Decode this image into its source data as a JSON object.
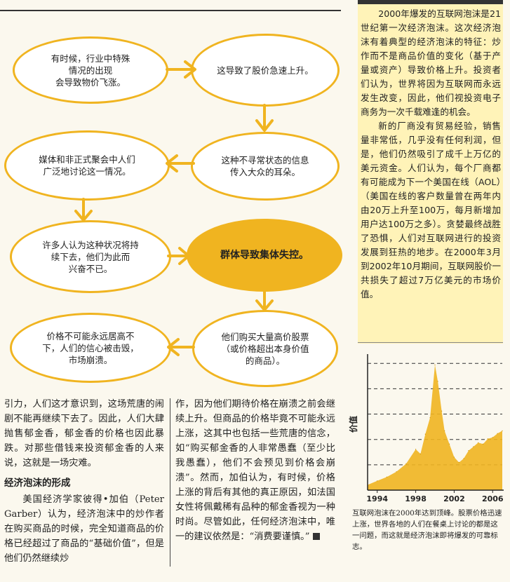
{
  "flow": {
    "nodes": [
      {
        "text": "有时候，行业中特殊\n情况的出现\n会导致物价飞涨。"
      },
      {
        "text": "这导致了股价急速上升。"
      },
      {
        "text": "媒体和非正式聚会中人们\n广泛地讨论这一情况。"
      },
      {
        "text": "这种不寻常状态的信息\n传入大众的耳朵。"
      },
      {
        "text": "许多人认为这种状况将持\n续下去，他们为此而\n兴奋不已。"
      },
      {
        "text": "群体导致集体失控。"
      },
      {
        "text": "价格不可能永远居高不\n下，人们的信心被击毁，\n市场崩溃。"
      },
      {
        "text": "他们购买大量高价股票\n（或价格超出本身价值\n的商品）。"
      }
    ],
    "accent": "#f0b420"
  },
  "article": {
    "col1_p1": "引力，人们这才意识到，这场荒唐的闹剧不能再继续下去了。因此，人们大肆抛售郁金香，郁金香的价格也因此暴跌。对那些借钱来投资郁金香的人来说，这就是一场灾难。",
    "heading": "经济泡沫的形成",
    "col1_p2": "美国经济学家彼得•加伯（Peter Garber）认为，经济泡沫中的炒作者在购买商品的时候，完全知道商品的价格已经超过了商品的“基础价值”，但是他们仍然继续炒",
    "col2_p1": "作，因为他们期待价格在崩溃之前会继续上升。但商品的价格毕竟不可能永远上涨，这其中也包括一些荒唐的信念，如“购买郁金香的人非常愚蠢（至少比我愚蠢），他们不会预见到价格会崩溃”。然而，加伯认为，有时候，价格上涨的背后有其他的真正原因，如法国女性将佩戴稀有品种的郁金香视为一种时尚。尽管如此，任何经济泡沫中，唯一的建议依然是：“消费要谨慎。”"
  },
  "sidebar": {
    "p1": "2000年爆发的互联网泡沫是21世纪第一次经济泡沫。这次经济泡沫有着典型的经济泡沫的特征：炒作而不是商品价值的变化（基于产量或资产）导致价格上升。投资者们认为，世界将因为互联网而永远发生改变，因此，他们视投资电子商务为一次千载难逢的机会。",
    "p2": "新的厂商没有贸易经验，销售量非常低，几乎没有任何利润，但是，他们仍然吸引了成千上万亿的美元资金。人们认为，每个厂商都有可能成为下一个美国在线（AOL）（美国在线的客户数量曾在两年内由20万上升至100万，每月新增加用户达100万之多）。贪婪最终战胜了恐惧，人们对互联网进行的投资发展到狂热的地步。在2000年3月到2002年10月期间，互联网股价一共损失了超过7万亿美元的市场价值。"
  },
  "chart_data": {
    "type": "area",
    "ylabel": "价值",
    "x_ticks": [
      "1994",
      "1998",
      "2002",
      "2006"
    ],
    "x": [
      1993,
      1994,
      1995,
      1996,
      1997,
      1998,
      1998.5,
      1999,
      1999.5,
      2000,
      2000.3,
      2000.7,
      2001,
      2001.5,
      2002,
      2002.5,
      2003,
      2003.5,
      2004,
      2004.5,
      2005,
      2005.5,
      2006,
      2006.5,
      2007
    ],
    "values": [
      8,
      14,
      20,
      28,
      40,
      62,
      55,
      85,
      110,
      190,
      165,
      120,
      90,
      70,
      50,
      42,
      48,
      60,
      66,
      72,
      70,
      78,
      80,
      86,
      90
    ],
    "ylim": [
      0,
      200
    ],
    "grid": true,
    "color": "#f0b420",
    "caption": "互联网泡沫在2000年达到顶峰。股票价格迅速上涨，世界各地的人们在餐桌上讨论的都是这一问题，而这就是经济泡沫即将爆发的可靠标志。"
  }
}
